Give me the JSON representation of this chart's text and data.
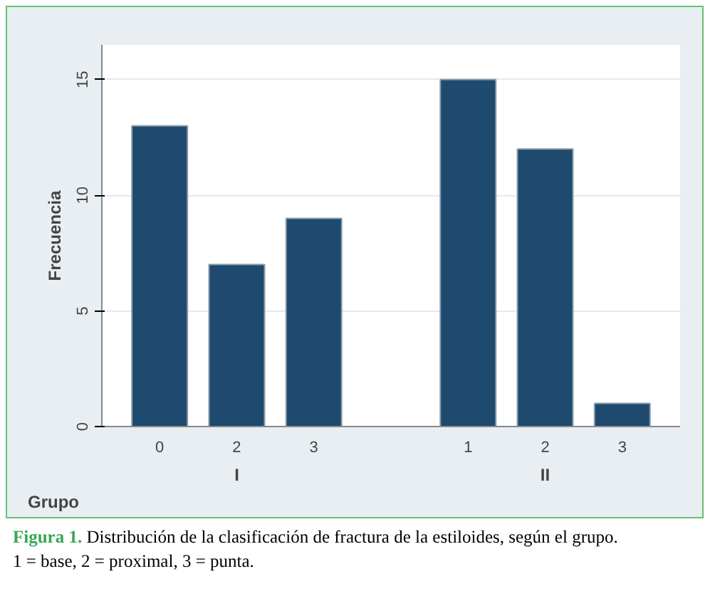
{
  "chart_data": {
    "type": "bar",
    "ylabel": "Frecuencia",
    "categories": [
      "0",
      "2",
      "3",
      null,
      "1",
      "2",
      "3"
    ],
    "values": [
      13,
      7,
      9,
      null,
      15,
      12,
      1
    ],
    "color": "#1d4a6e",
    "ylim": [
      0,
      16.5
    ],
    "yticks": [
      0,
      5,
      10,
      15
    ],
    "grid": "y",
    "annotations": [
      "Grupo",
      "I",
      "II",
      "Figura 1.",
      "Distribución de la clasificación de fractura de la estiloides, según el grupo.",
      "1 = base, 2 = proximal, 3 = punta."
    ]
  }
}
